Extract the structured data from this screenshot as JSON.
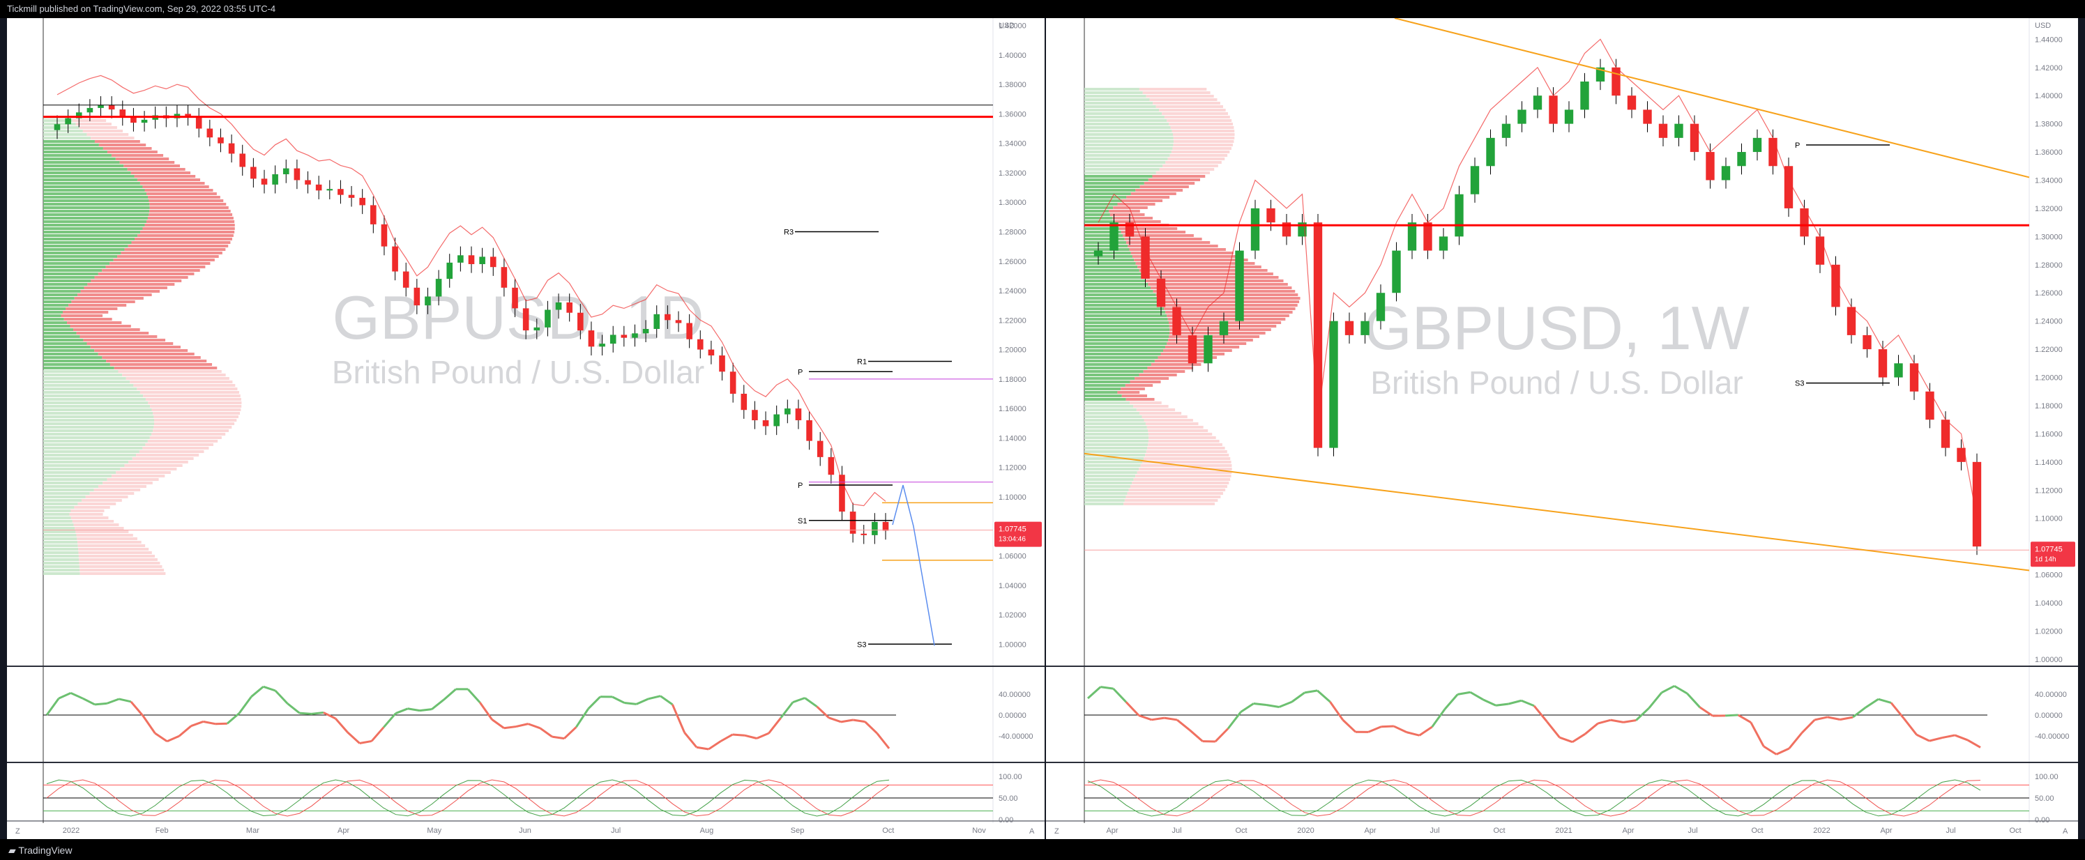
{
  "header": {
    "published": "Tickmill published on TradingView.com, Sep 29, 2022 03:55 UTC-4"
  },
  "footer": {
    "brand": "TradingView"
  },
  "colors": {
    "up": "#22a33a",
    "down": "#ef2b2b",
    "trend": "#f7a21b",
    "pivot": "#c33bdc",
    "level": "#ff0000"
  },
  "chart_data": [
    {
      "type": "line",
      "symbol": "GBPUSD, 1D",
      "description": "British Pound / U.S. Dollar",
      "currency": "USD",
      "last_price": "1.07745",
      "countdown": "13:04:46",
      "price_range": [
        0.985,
        1.425
      ],
      "yticks": [
        "1.42000",
        "1.40000",
        "1.38000",
        "1.36000",
        "1.34000",
        "1.32000",
        "1.30000",
        "1.28000",
        "1.26000",
        "1.24000",
        "1.22000",
        "1.20000",
        "1.18000",
        "1.16000",
        "1.14000",
        "1.12000",
        "1.10000",
        "1.08000",
        "1.06000",
        "1.04000",
        "1.02000",
        "1.00000"
      ],
      "xticks": [
        "2022",
        "Feb",
        "Mar",
        "Apr",
        "May",
        "Jun",
        "Jul",
        "Aug",
        "Sep",
        "Oct",
        "Nov"
      ],
      "close": [
        1.353,
        1.357,
        1.361,
        1.364,
        1.366,
        1.363,
        1.358,
        1.354,
        1.356,
        1.359,
        1.357,
        1.36,
        1.358,
        1.35,
        1.344,
        1.34,
        1.333,
        1.324,
        1.316,
        1.312,
        1.319,
        1.323,
        1.315,
        1.312,
        1.308,
        1.309,
        1.305,
        1.303,
        1.298,
        1.285,
        1.27,
        1.253,
        1.242,
        1.23,
        1.236,
        1.248,
        1.259,
        1.264,
        1.258,
        1.263,
        1.256,
        1.242,
        1.228,
        1.213,
        1.215,
        1.227,
        1.232,
        1.225,
        1.213,
        1.202,
        1.204,
        1.21,
        1.208,
        1.211,
        1.214,
        1.224,
        1.22,
        1.218,
        1.207,
        1.2,
        1.196,
        1.185,
        1.17,
        1.159,
        1.152,
        1.148,
        1.156,
        1.16,
        1.152,
        1.138,
        1.127,
        1.115,
        1.09,
        1.075,
        1.074,
        1.083,
        1.077
      ],
      "pivot_levels": [
        {
          "name": "R3",
          "value": 1.28
        },
        {
          "name": "R1",
          "value": 1.192
        },
        {
          "name": "P",
          "value": 1.185
        },
        {
          "name": "P",
          "value": 1.108
        },
        {
          "name": "S1",
          "value": 1.084
        },
        {
          "name": "S3",
          "value": 1.0
        }
      ],
      "s1_label": "S1",
      "rsi_ticks": [
        "40.00000",
        "0.00000",
        "-40.00000"
      ],
      "osc_ticks": [
        "100.00",
        "50.00",
        "0.00"
      ]
    },
    {
      "type": "line",
      "symbol": "GBPUSD, 1W",
      "description": "British Pound / U.S. Dollar",
      "currency": "USD",
      "last_price": "1.07745",
      "countdown": "1d 14h",
      "price_range": [
        0.995,
        1.455
      ],
      "yticks": [
        "1.44000",
        "1.42000",
        "1.40000",
        "1.38000",
        "1.36000",
        "1.34000",
        "1.32000",
        "1.30000",
        "1.28000",
        "1.26000",
        "1.24000",
        "1.22000",
        "1.20000",
        "1.18000",
        "1.16000",
        "1.14000",
        "1.12000",
        "1.10000",
        "1.08000",
        "1.06000",
        "1.04000",
        "1.02000",
        "1.00000"
      ],
      "xticks": [
        "Apr",
        "Jul",
        "Oct",
        "2020",
        "Apr",
        "Jul",
        "Oct",
        "2021",
        "Apr",
        "Jul",
        "Oct",
        "2022",
        "Apr",
        "Jul",
        "Oct"
      ],
      "close": [
        1.29,
        1.31,
        1.3,
        1.27,
        1.25,
        1.23,
        1.21,
        1.23,
        1.24,
        1.29,
        1.32,
        1.31,
        1.3,
        1.31,
        1.15,
        1.24,
        1.23,
        1.24,
        1.26,
        1.29,
        1.31,
        1.29,
        1.3,
        1.33,
        1.35,
        1.37,
        1.38,
        1.39,
        1.4,
        1.38,
        1.39,
        1.41,
        1.42,
        1.4,
        1.39,
        1.38,
        1.37,
        1.38,
        1.36,
        1.34,
        1.35,
        1.36,
        1.37,
        1.35,
        1.32,
        1.3,
        1.28,
        1.25,
        1.23,
        1.22,
        1.2,
        1.21,
        1.19,
        1.17,
        1.15,
        1.14,
        1.08
      ],
      "pivot_levels": [
        {
          "name": "P",
          "value": 1.365
        },
        {
          "name": "S3",
          "value": 1.196
        }
      ],
      "rsi_ticks": [
        "40.00000",
        "0.00000",
        "-40.00000"
      ],
      "osc_ticks": [
        "100.00",
        "50.00",
        "0.00"
      ]
    }
  ]
}
